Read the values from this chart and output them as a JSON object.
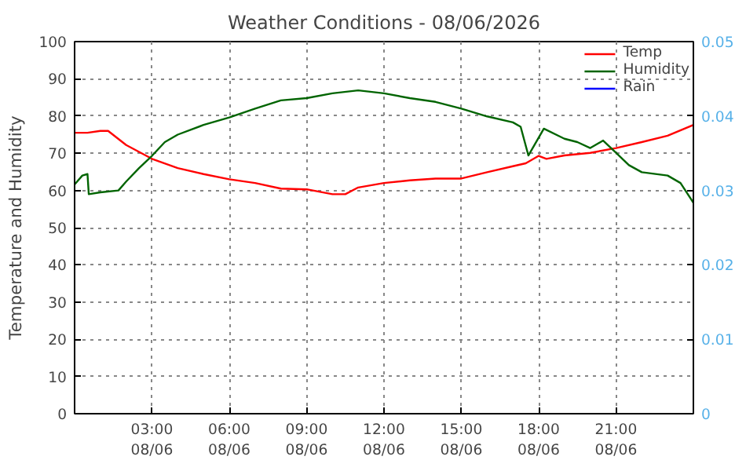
{
  "chart_data": {
    "type": "line",
    "title": "Weather Conditions - 08/06/2026",
    "ylabel": "Temperature and Humidity",
    "xlim": [
      "2026-06-08T00:00",
      "2026-06-09T00:00"
    ],
    "xticks": [
      {
        "value": "2026-06-08T03:00",
        "label": "03:00\n08/06"
      },
      {
        "value": "2026-06-08T06:00",
        "label": "06:00\n08/06"
      },
      {
        "value": "2026-06-08T09:00",
        "label": "09:00\n08/06"
      },
      {
        "value": "2026-06-08T12:00",
        "label": "12:00\n08/06"
      },
      {
        "value": "2026-06-08T15:00",
        "label": "15:00\n08/06"
      },
      {
        "value": "2026-06-08T18:00",
        "label": "18:00\n08/06"
      },
      {
        "value": "2026-06-08T21:00",
        "label": "21:00\n08/06"
      }
    ],
    "ylim": [
      0,
      100
    ],
    "yticks": [
      0,
      10,
      20,
      30,
      40,
      50,
      60,
      70,
      80,
      90,
      100
    ],
    "y2lim": [
      0,
      0.05
    ],
    "y2ticks": [
      0,
      0.01,
      0.02,
      0.03,
      0.04,
      0.05
    ],
    "grid": true,
    "legend": "top right",
    "series": [
      {
        "name": "Temp",
        "color": "#ff0000",
        "x": [
          "2026-06-08T00:00",
          "2026-06-08T00:30",
          "2026-06-08T01:00",
          "2026-06-08T01:18",
          "2026-06-08T02:00",
          "2026-06-08T03:00",
          "2026-06-08T04:00",
          "2026-06-08T05:00",
          "2026-06-08T06:00",
          "2026-06-08T07:00",
          "2026-06-08T08:00",
          "2026-06-08T09:00",
          "2026-06-08T10:00",
          "2026-06-08T10:30",
          "2026-06-08T11:00",
          "2026-06-08T12:00",
          "2026-06-08T13:00",
          "2026-06-08T14:00",
          "2026-06-08T15:00",
          "2026-06-08T16:00",
          "2026-06-08T17:00",
          "2026-06-08T17:30",
          "2026-06-08T18:00",
          "2026-06-08T18:18",
          "2026-06-08T19:00",
          "2026-06-08T20:00",
          "2026-06-08T21:00",
          "2026-06-08T22:00",
          "2026-06-08T23:00",
          "2026-06-09T00:00"
        ],
        "values": [
          75.5,
          75.5,
          76,
          76,
          72.2,
          68.5,
          66,
          64.4,
          63,
          62,
          60.5,
          60.3,
          59,
          59,
          60.8,
          62,
          62.7,
          63.2,
          63.2,
          64.9,
          66.5,
          67.3,
          69.3,
          68.5,
          69.4,
          70.1,
          71.4,
          73,
          74.7,
          77.6
        ]
      },
      {
        "name": "Humidity",
        "color": "#006400",
        "x": [
          "2026-06-08T00:00",
          "2026-06-08T00:18",
          "2026-06-08T00:30",
          "2026-06-08T00:33",
          "2026-06-08T01:00",
          "2026-06-08T01:42",
          "2026-06-08T02:00",
          "2026-06-08T02:30",
          "2026-06-08T03:00",
          "2026-06-08T03:30",
          "2026-06-08T04:00",
          "2026-06-08T05:00",
          "2026-06-08T06:00",
          "2026-06-08T07:00",
          "2026-06-08T08:00",
          "2026-06-08T09:00",
          "2026-06-08T10:00",
          "2026-06-08T11:00",
          "2026-06-08T12:00",
          "2026-06-08T13:00",
          "2026-06-08T14:00",
          "2026-06-08T15:00",
          "2026-06-08T16:00",
          "2026-06-08T17:00",
          "2026-06-08T17:18",
          "2026-06-08T17:36",
          "2026-06-08T18:12",
          "2026-06-08T19:00",
          "2026-06-08T19:30",
          "2026-06-08T20:00",
          "2026-06-08T20:30",
          "2026-06-08T21:00",
          "2026-06-08T21:30",
          "2026-06-08T22:00",
          "2026-06-08T23:00",
          "2026-06-08T23:30",
          "2026-06-09T00:00"
        ],
        "values": [
          61.6,
          64,
          64.4,
          59,
          59.5,
          60,
          62.4,
          66,
          69.3,
          73,
          75,
          77.6,
          79.6,
          82,
          84.2,
          84.8,
          86.1,
          86.9,
          86.1,
          84.8,
          83.8,
          82,
          79.9,
          78.3,
          77.1,
          69.4,
          76.6,
          73.9,
          73,
          71.4,
          73.4,
          70.1,
          66.8,
          64.9,
          64,
          62,
          56.7
        ]
      },
      {
        "name": "Rain",
        "color": "#0000ff"
      }
    ]
  }
}
